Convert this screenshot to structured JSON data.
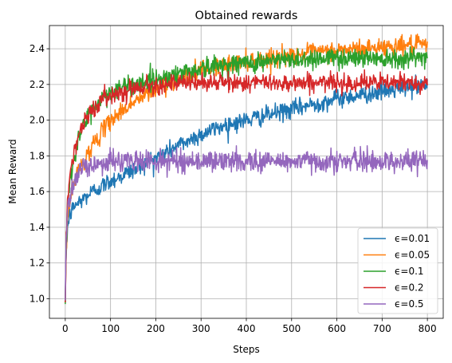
{
  "chart_data": {
    "type": "line",
    "title": "Obtained rewards",
    "xlabel": "Steps",
    "ylabel": "Mean Reward",
    "xlim": [
      -35,
      835
    ],
    "ylim": [
      0.89,
      2.53
    ],
    "xticks": [
      0,
      100,
      200,
      300,
      400,
      500,
      600,
      700,
      800
    ],
    "yticks": [
      1.0,
      1.2,
      1.4,
      1.6,
      1.8,
      2.0,
      2.2,
      2.4
    ],
    "ytick_labels": [
      "1.0",
      "1.2",
      "1.4",
      "1.6",
      "1.8",
      "2.0",
      "2.2",
      "2.4"
    ],
    "grid": true,
    "legend_position": "lower-right",
    "series": [
      {
        "name": "ϵ=0.01",
        "color": "#1f77b4",
        "noise": 0.025,
        "x": [
          0,
          2,
          5,
          10,
          20,
          40,
          60,
          80,
          100,
          150,
          200,
          250,
          300,
          350,
          400,
          450,
          500,
          550,
          600,
          650,
          700,
          750,
          800
        ],
        "y": [
          0.98,
          1.25,
          1.4,
          1.47,
          1.52,
          1.56,
          1.6,
          1.63,
          1.66,
          1.72,
          1.79,
          1.86,
          1.92,
          1.97,
          2.0,
          2.03,
          2.06,
          2.09,
          2.12,
          2.14,
          2.16,
          2.18,
          2.2
        ]
      },
      {
        "name": "ϵ=0.05",
        "color": "#ff7f0e",
        "noise": 0.025,
        "x": [
          0,
          2,
          5,
          10,
          20,
          30,
          40,
          60,
          80,
          100,
          150,
          200,
          250,
          300,
          350,
          400,
          450,
          500,
          550,
          600,
          650,
          700,
          750,
          800
        ],
        "y": [
          0.98,
          1.25,
          1.45,
          1.55,
          1.65,
          1.72,
          1.77,
          1.86,
          1.93,
          2.0,
          2.1,
          2.17,
          2.23,
          2.28,
          2.31,
          2.33,
          2.35,
          2.36,
          2.38,
          2.39,
          2.4,
          2.41,
          2.42,
          2.42
        ]
      },
      {
        "name": "ϵ=0.1",
        "color": "#2ca02c",
        "noise": 0.028,
        "x": [
          0,
          2,
          5,
          10,
          20,
          30,
          40,
          60,
          80,
          100,
          150,
          200,
          250,
          300,
          350,
          400,
          500,
          600,
          700,
          800
        ],
        "y": [
          0.97,
          1.3,
          1.5,
          1.65,
          1.8,
          1.9,
          1.97,
          2.06,
          2.12,
          2.16,
          2.2,
          2.23,
          2.26,
          2.29,
          2.31,
          2.32,
          2.34,
          2.35,
          2.35,
          2.35
        ]
      },
      {
        "name": "ϵ=0.2",
        "color": "#d62728",
        "noise": 0.025,
        "x": [
          0,
          2,
          5,
          10,
          20,
          30,
          40,
          60,
          80,
          100,
          150,
          200,
          300,
          400,
          500,
          600,
          700,
          800
        ],
        "y": [
          0.98,
          1.35,
          1.55,
          1.7,
          1.83,
          1.92,
          1.98,
          2.06,
          2.11,
          2.14,
          2.18,
          2.2,
          2.21,
          2.21,
          2.21,
          2.21,
          2.21,
          2.21
        ]
      },
      {
        "name": "ϵ=0.5",
        "color": "#9467bd",
        "noise": 0.03,
        "x": [
          0,
          2,
          5,
          10,
          20,
          30,
          40,
          60,
          80,
          100,
          150,
          200,
          300,
          400,
          500,
          600,
          700,
          800
        ],
        "y": [
          0.99,
          1.35,
          1.5,
          1.58,
          1.65,
          1.7,
          1.73,
          1.75,
          1.76,
          1.77,
          1.77,
          1.77,
          1.77,
          1.77,
          1.77,
          1.77,
          1.77,
          1.77
        ]
      }
    ]
  }
}
